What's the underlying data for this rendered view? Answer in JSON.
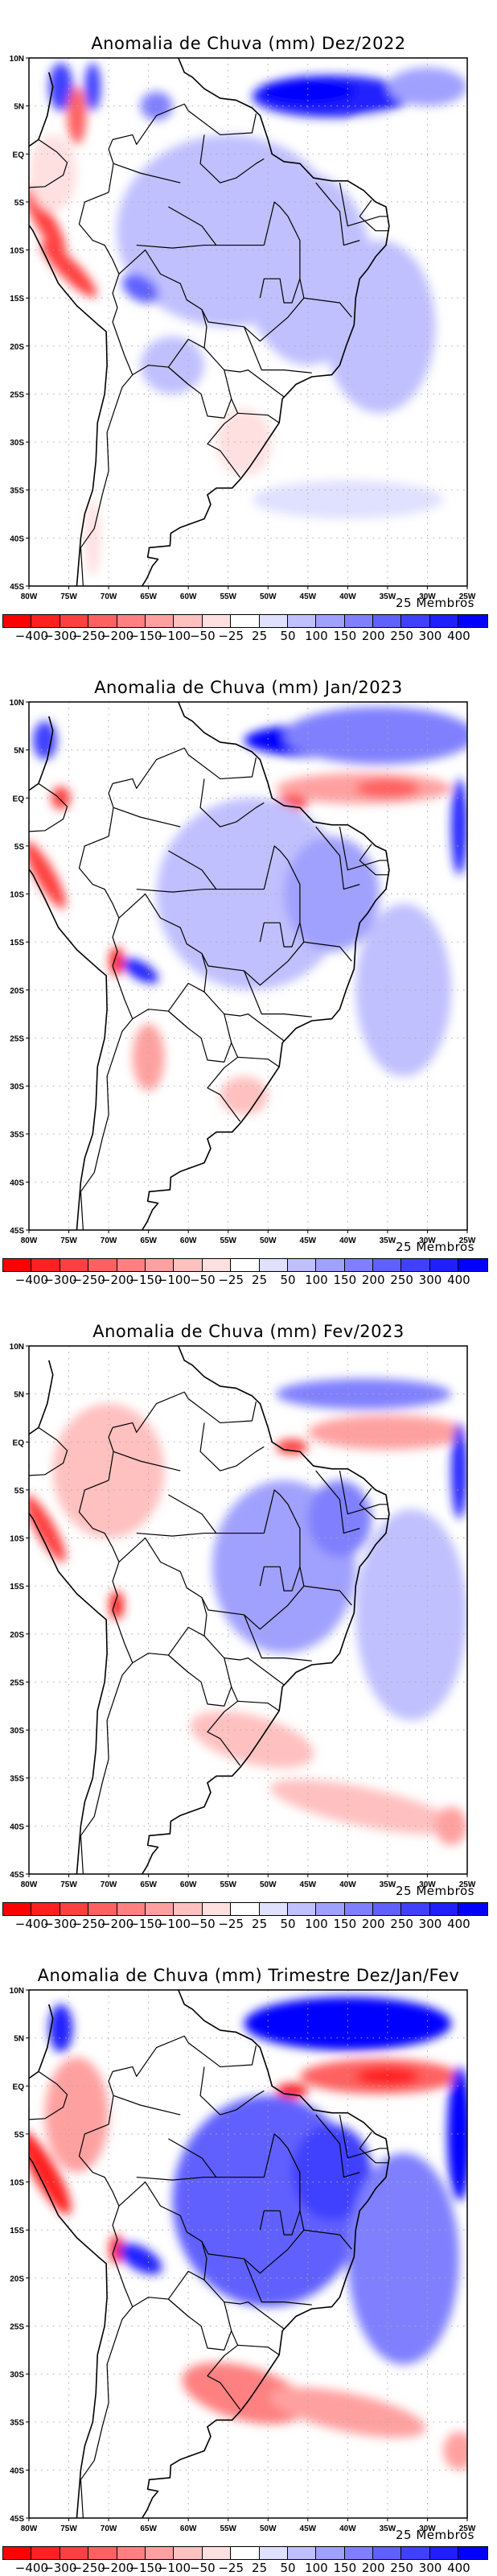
{
  "colorbar": {
    "colors": [
      "#ff0000",
      "#ff2020",
      "#ff4040",
      "#ff6060",
      "#ff8080",
      "#ffa0a0",
      "#ffc0c0",
      "#ffe0e0",
      "#ffffff",
      "#e0e0ff",
      "#c0c0ff",
      "#a0a0ff",
      "#8080ff",
      "#6060ff",
      "#4040ff",
      "#2020ff",
      "#0000ff"
    ],
    "labels": [
      "-400",
      "-300",
      "-250",
      "-200",
      "-150",
      "-100",
      "-50",
      "-25",
      "25",
      "50",
      "100",
      "150",
      "200",
      "250",
      "300",
      "400"
    ],
    "levels": [
      -400,
      -300,
      -250,
      -200,
      -150,
      -100,
      -50,
      -25,
      25,
      50,
      100,
      150,
      200,
      250,
      300,
      400
    ]
  },
  "axes": {
    "x_ticks": [
      "80W",
      "75W",
      "70W",
      "65W",
      "60W",
      "55W",
      "50W",
      "45W",
      "40W",
      "35W",
      "30W",
      "25W"
    ],
    "y_ticks": [
      "10N",
      "5N",
      "EQ",
      "5S",
      "10S",
      "15S",
      "20S",
      "25S",
      "30S",
      "35S",
      "40S",
      "45S"
    ],
    "lon_range": [
      -80,
      -25
    ],
    "lat_range": [
      -45,
      10
    ]
  },
  "ensemble_label": "25 Membros",
  "chart_data": [
    {
      "type": "heatmap",
      "title": "Anomalia de Chuva (mm) Dez/2022",
      "xlabel": "",
      "ylabel": "",
      "legend": "bottom",
      "units": "mm",
      "anomalies": [
        {
          "lon": -42,
          "lat": 6,
          "rx": 10,
          "ry": 2.2,
          "value": 300
        },
        {
          "lon": -45,
          "lat": 6.5,
          "rx": 6,
          "ry": 1.4,
          "value": 400
        },
        {
          "lon": -30,
          "lat": 7,
          "rx": 5,
          "ry": 2,
          "value": 100
        },
        {
          "lon": -55,
          "lat": -8,
          "rx": 14,
          "ry": 10,
          "value": 50
        },
        {
          "lon": -45,
          "lat": -12,
          "rx": 8,
          "ry": 10,
          "value": 60
        },
        {
          "lon": -36,
          "lat": -18,
          "rx": 7,
          "ry": 9,
          "value": 80
        },
        {
          "lon": -64,
          "lat": 5,
          "rx": 2,
          "ry": 1.5,
          "value": 150
        },
        {
          "lon": -76,
          "lat": 7,
          "rx": 1.5,
          "ry": 2.5,
          "value": 250
        },
        {
          "lon": -72,
          "lat": 7,
          "rx": 1,
          "ry": 2.5,
          "value": 250
        },
        {
          "lon": -78,
          "lat": -7,
          "rx": 1.2,
          "ry": 4,
          "value": -300,
          "rot": -30
        },
        {
          "lon": -75,
          "lat": -12,
          "rx": 1.2,
          "ry": 4,
          "value": -300,
          "rot": -45
        },
        {
          "lon": -74,
          "lat": 4,
          "rx": 1.2,
          "ry": 3,
          "value": -250
        },
        {
          "lon": -77,
          "lat": -2,
          "rx": 3,
          "ry": 4,
          "value": -50
        },
        {
          "lon": -66,
          "lat": -14,
          "rx": 2.5,
          "ry": 1.3,
          "value": 200,
          "rot": 30
        },
        {
          "lon": -53,
          "lat": -30,
          "rx": 3.5,
          "ry": 3.5,
          "value": -50
        },
        {
          "lon": -35,
          "lat": 3,
          "rx": 4,
          "ry": 1,
          "value": -25
        },
        {
          "lon": -72,
          "lat": -40,
          "rx": 1,
          "ry": 4,
          "value": -50
        },
        {
          "lon": -62,
          "lat": -22,
          "rx": 4,
          "ry": 3,
          "value": 60
        },
        {
          "lon": -40,
          "lat": -36,
          "rx": 12,
          "ry": 2,
          "value": 30
        },
        {
          "lon": -44,
          "lat": -31,
          "rx": 4,
          "ry": 1,
          "value": -25
        }
      ]
    },
    {
      "type": "heatmap",
      "title": "Anomalia de Chuva (mm) Jan/2023",
      "xlabel": "",
      "ylabel": "",
      "legend": "bottom",
      "units": "mm",
      "anomalies": [
        {
          "lon": -42,
          "lat": 6,
          "rx": 11,
          "ry": 1.8,
          "value": 400
        },
        {
          "lon": -36,
          "lat": 6.5,
          "rx": 12,
          "ry": 3,
          "value": 150
        },
        {
          "lon": -38,
          "lat": 1,
          "rx": 11,
          "ry": 1.6,
          "value": -150
        },
        {
          "lon": -35,
          "lat": 1,
          "rx": 4,
          "ry": 1,
          "value": -250
        },
        {
          "lon": -47,
          "lat": -0.5,
          "rx": 2,
          "ry": 0.8,
          "value": -300
        },
        {
          "lon": -26,
          "lat": -3,
          "rx": 1,
          "ry": 5,
          "value": 300
        },
        {
          "lon": -52,
          "lat": -10,
          "rx": 12,
          "ry": 10,
          "value": 60
        },
        {
          "lon": -42,
          "lat": -10,
          "rx": 6,
          "ry": 6,
          "value": 100
        },
        {
          "lon": -33,
          "lat": -20,
          "rx": 6,
          "ry": 9,
          "value": 60
        },
        {
          "lon": -78,
          "lat": -8,
          "rx": 1.2,
          "ry": 4,
          "value": -300,
          "rot": -30
        },
        {
          "lon": -76,
          "lat": 0,
          "rx": 1.2,
          "ry": 1.2,
          "value": -300
        },
        {
          "lon": -69,
          "lat": -17,
          "rx": 0.9,
          "ry": 1.5,
          "value": -400
        },
        {
          "lon": -66,
          "lat": -18,
          "rx": 2.5,
          "ry": 0.9,
          "value": 300,
          "rot": 30
        },
        {
          "lon": -65,
          "lat": -27,
          "rx": 2,
          "ry": 3.5,
          "value": -150
        },
        {
          "lon": -53,
          "lat": -31,
          "rx": 3,
          "ry": 2,
          "value": -100
        },
        {
          "lon": -78,
          "lat": 6,
          "rx": 1.5,
          "ry": 2,
          "value": 250
        }
      ]
    },
    {
      "type": "heatmap",
      "title": "Anomalia de Chuva (mm) Fev/2023",
      "xlabel": "",
      "ylabel": "",
      "legend": "bottom",
      "units": "mm",
      "anomalies": [
        {
          "lon": -38,
          "lat": 5,
          "rx": 11,
          "ry": 1.6,
          "value": 150
        },
        {
          "lon": -35,
          "lat": 1,
          "rx": 10,
          "ry": 1.8,
          "value": -150
        },
        {
          "lon": -47,
          "lat": -0.5,
          "rx": 2,
          "ry": 0.8,
          "value": -300
        },
        {
          "lon": -26,
          "lat": -3,
          "rx": 1,
          "ry": 5,
          "value": 300
        },
        {
          "lon": -48,
          "lat": -13,
          "rx": 9,
          "ry": 9,
          "value": 130
        },
        {
          "lon": -41,
          "lat": -8,
          "rx": 4,
          "ry": 4,
          "value": 180
        },
        {
          "lon": -32,
          "lat": -18,
          "rx": 7,
          "ry": 11,
          "value": 80
        },
        {
          "lon": -70,
          "lat": -3,
          "rx": 7,
          "ry": 7,
          "value": -60
        },
        {
          "lon": -78,
          "lat": -9,
          "rx": 1.2,
          "ry": 4,
          "value": -300,
          "rot": -30
        },
        {
          "lon": -69,
          "lat": -17,
          "rx": 0.9,
          "ry": 1.5,
          "value": -400
        },
        {
          "lon": -52,
          "lat": -31,
          "rx": 8,
          "ry": 2.5,
          "value": -100,
          "rot": 15
        },
        {
          "lon": -38,
          "lat": -38,
          "rx": 12,
          "ry": 2,
          "value": -70,
          "rot": 12
        },
        {
          "lon": -27,
          "lat": -40,
          "rx": 2,
          "ry": 2,
          "value": -150
        }
      ]
    },
    {
      "type": "heatmap",
      "title": "Anomalia de Chuva (mm) Trimestre Dez/Jan/Fev",
      "xlabel": "",
      "ylabel": "",
      "legend": "bottom",
      "units": "mm",
      "anomalies": [
        {
          "lon": -40,
          "lat": 6.5,
          "rx": 13,
          "ry": 2.8,
          "value": 400
        },
        {
          "lon": -36,
          "lat": 1,
          "rx": 10,
          "ry": 1.8,
          "value": -250
        },
        {
          "lon": -35,
          "lat": 1,
          "rx": 4,
          "ry": 1,
          "value": -400
        },
        {
          "lon": -47,
          "lat": -0.5,
          "rx": 2,
          "ry": 0.8,
          "value": -400
        },
        {
          "lon": -26,
          "lat": -5,
          "rx": 1.5,
          "ry": 7,
          "value": 400
        },
        {
          "lon": -50,
          "lat": -12,
          "rx": 12,
          "ry": 11,
          "value": 200
        },
        {
          "lon": -42,
          "lat": -9,
          "rx": 5,
          "ry": 5,
          "value": 280
        },
        {
          "lon": -33,
          "lat": -18,
          "rx": 7,
          "ry": 11,
          "value": 180
        },
        {
          "lon": -74,
          "lat": -3,
          "rx": 4,
          "ry": 6,
          "value": -150
        },
        {
          "lon": -78,
          "lat": -9,
          "rx": 1.5,
          "ry": 5,
          "value": -400,
          "rot": -30
        },
        {
          "lon": -69,
          "lat": -17,
          "rx": 0.9,
          "ry": 1.5,
          "value": -400
        },
        {
          "lon": -66,
          "lat": -18,
          "rx": 3,
          "ry": 1.2,
          "value": 350,
          "rot": 30
        },
        {
          "lon": -76,
          "lat": 6,
          "rx": 1.5,
          "ry": 2.5,
          "value": 300
        },
        {
          "lon": -53,
          "lat": -32,
          "rx": 8,
          "ry": 2.8,
          "value": -200,
          "rot": 15
        },
        {
          "lon": -40,
          "lat": -34,
          "rx": 10,
          "ry": 2,
          "value": -120,
          "rot": 12
        },
        {
          "lon": -26,
          "lat": -38,
          "rx": 2,
          "ry": 2,
          "value": -150
        }
      ]
    }
  ]
}
